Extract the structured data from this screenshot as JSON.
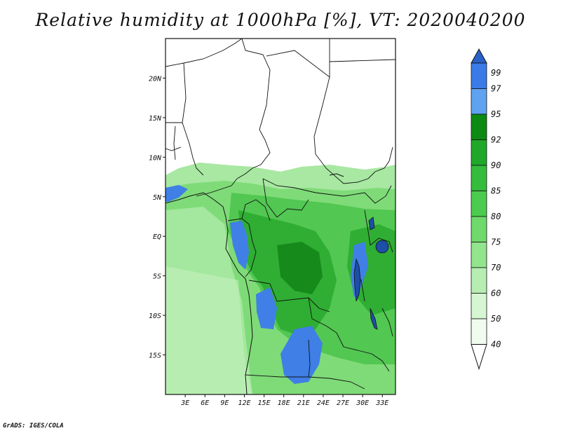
{
  "title": "Relative humidity at 1000hPa [%], VT: 2020040200",
  "credit": "GrADS: IGES/COLA",
  "map": {
    "lon_range": [
      0,
      35
    ],
    "lat_range": [
      -20,
      25
    ],
    "x_ticks": [
      "3E",
      "6E",
      "9E",
      "12E",
      "15E",
      "18E",
      "21E",
      "24E",
      "27E",
      "30E",
      "33E"
    ],
    "y_ticks": [
      "20N",
      "15N",
      "10N",
      "5N",
      "EQ",
      "5S",
      "10S",
      "15S"
    ]
  },
  "colorbar": {
    "levels": [
      "99",
      "97",
      "95",
      "92",
      "90",
      "85",
      "80",
      "75",
      "70",
      "60",
      "50",
      "40"
    ],
    "colors": [
      "#2a61c9",
      "#3a7be8",
      "#5fa2f0",
      "#0d8a13",
      "#1fa82a",
      "#34bc3c",
      "#4ccc4f",
      "#6fd96c",
      "#92e48d",
      "#b6eeb1",
      "#d5f6d1",
      "#f0fcee",
      "#ffffff"
    ]
  },
  "colors": {
    "dry_fill": "#ffffff",
    "border": "#111111"
  }
}
